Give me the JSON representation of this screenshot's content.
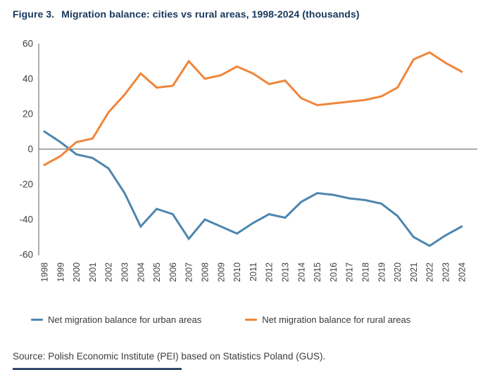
{
  "title": {
    "figure_label": "Figure 3.",
    "text": "Migration balance: cities vs rural areas, 1998-2024 (thousands)"
  },
  "source": "Source: Polish Economic Institute (PEI) based on Statistics Poland (GUS).",
  "legend": [
    {
      "label": "Net migration balance for urban areas",
      "color": "#4e86ae"
    },
    {
      "label": "Net migration balance for rural areas",
      "color": "#f0863a"
    }
  ],
  "colors": {
    "title_navy": "#16365c",
    "urban_line": "#4e86ae",
    "rural_line": "#f0863a",
    "axis_line": "#7a7a7a",
    "tick_text": "#3f3f3f",
    "footer_bar": "#31496b"
  },
  "chart_data": {
    "type": "line",
    "x": [
      "1998",
      "1999",
      "2000",
      "2001",
      "2002",
      "2003",
      "2004",
      "2005",
      "2006",
      "2007",
      "2008",
      "2009",
      "2010",
      "2011",
      "2012",
      "2013",
      "2014",
      "2015",
      "2016",
      "2017",
      "2018",
      "2019",
      "2020",
      "2021",
      "2022",
      "2023",
      "2024"
    ],
    "series": [
      {
        "name": "Net migration balance for urban areas",
        "color": "#4e86ae",
        "values": [
          10,
          4,
          -3,
          -5,
          -11,
          -25,
          -44,
          -34,
          -37,
          -51,
          -40,
          -44,
          -48,
          -42,
          -37,
          -39,
          -30,
          -25,
          -26,
          -28,
          -29,
          -31,
          -38,
          -50,
          -55,
          -49,
          -44
        ]
      },
      {
        "name": "Net migration balance for rural areas",
        "color": "#f0863a",
        "values": [
          -9,
          -4,
          4,
          6,
          21,
          31,
          43,
          35,
          36,
          50,
          40,
          42,
          47,
          43,
          37,
          39,
          29,
          25,
          26,
          27,
          28,
          30,
          35,
          51,
          55,
          49,
          44
        ]
      }
    ],
    "title": "Figure 3. Migration balance: cities vs rural areas, 1998-2024 (thousands)",
    "xlabel": "",
    "ylabel": "",
    "ylim": [
      -60,
      60
    ],
    "yticks": [
      60,
      40,
      20,
      0,
      -20,
      -40,
      -60
    ],
    "grid": false,
    "legend_position": "bottom"
  }
}
